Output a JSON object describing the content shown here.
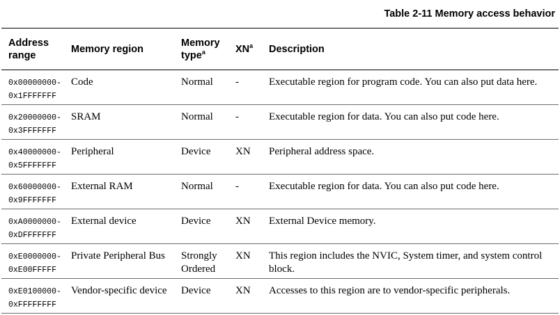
{
  "caption": "Table 2-11 Memory access behavior",
  "headers": {
    "address_range": "Address range",
    "memory_region": "Memory region",
    "memory_type": "Memory type",
    "memory_type_note": "a",
    "xn": "XN",
    "xn_note": "a",
    "description": "Description"
  },
  "rows": [
    {
      "addr_start": "0x00000000-",
      "addr_end": "0x1FFFFFFF",
      "region": "Code",
      "type": "Normal",
      "xn": "-",
      "description": "Executable region for program code. You can also put data here."
    },
    {
      "addr_start": "0x20000000-",
      "addr_end": "0x3FFFFFFF",
      "region": "SRAM",
      "type": "Normal",
      "xn": "-",
      "description": "Executable region for data. You can also put code here."
    },
    {
      "addr_start": "0x40000000-",
      "addr_end": "0x5FFFFFFF",
      "region": "Peripheral",
      "type": "Device",
      "xn": "XN",
      "description": "Peripheral address space."
    },
    {
      "addr_start": "0x60000000-",
      "addr_end": "0x9FFFFFFF",
      "region": "External RAM",
      "type": "Normal",
      "xn": "-",
      "description": "Executable region for data. You can also put code here."
    },
    {
      "addr_start": "0xA0000000-",
      "addr_end": "0xDFFFFFFF",
      "region": "External device",
      "type": "Device",
      "xn": "XN",
      "description": "External Device memory."
    },
    {
      "addr_start": "0xE0000000-",
      "addr_end": "0xE00FFFFF",
      "region": "Private Peripheral Bus",
      "type": "Strongly Ordered",
      "xn": "XN",
      "description": "This region includes the NVIC, System timer, and system control block."
    },
    {
      "addr_start": "0xE0100000-",
      "addr_end": "0xFFFFFFFF",
      "region": "Vendor-specific device",
      "type": "Device",
      "xn": "XN",
      "description": "Accesses to this region are to vendor-specific peripherals."
    }
  ]
}
